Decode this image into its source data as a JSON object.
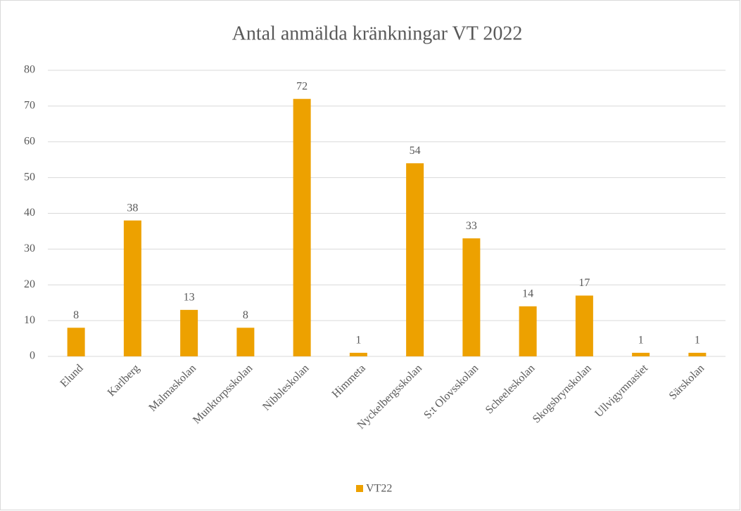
{
  "chart_data": {
    "type": "bar",
    "title": "Antal anmälda kränkningar VT 2022",
    "categories": [
      "Elund",
      "Karlberg",
      "Malmaskolan",
      "Munktorpsskolan",
      "Nibbleskolan",
      "Himmeta",
      "Nyckelbergsskolan",
      "S:t Olovsskolan",
      "Scheeleskolan",
      "Skogsbrynskolan",
      "Ullvigymnasiet",
      "Särskolan"
    ],
    "series": [
      {
        "name": "VT22",
        "color": "#eda100",
        "values": [
          8,
          38,
          13,
          8,
          72,
          1,
          54,
          33,
          14,
          17,
          1,
          1
        ]
      }
    ],
    "ylim": [
      0,
      80
    ],
    "yticks": [
      0,
      10,
      20,
      30,
      40,
      50,
      60,
      70,
      80
    ],
    "grid": true,
    "legend": "bottom",
    "data_labels": true
  }
}
